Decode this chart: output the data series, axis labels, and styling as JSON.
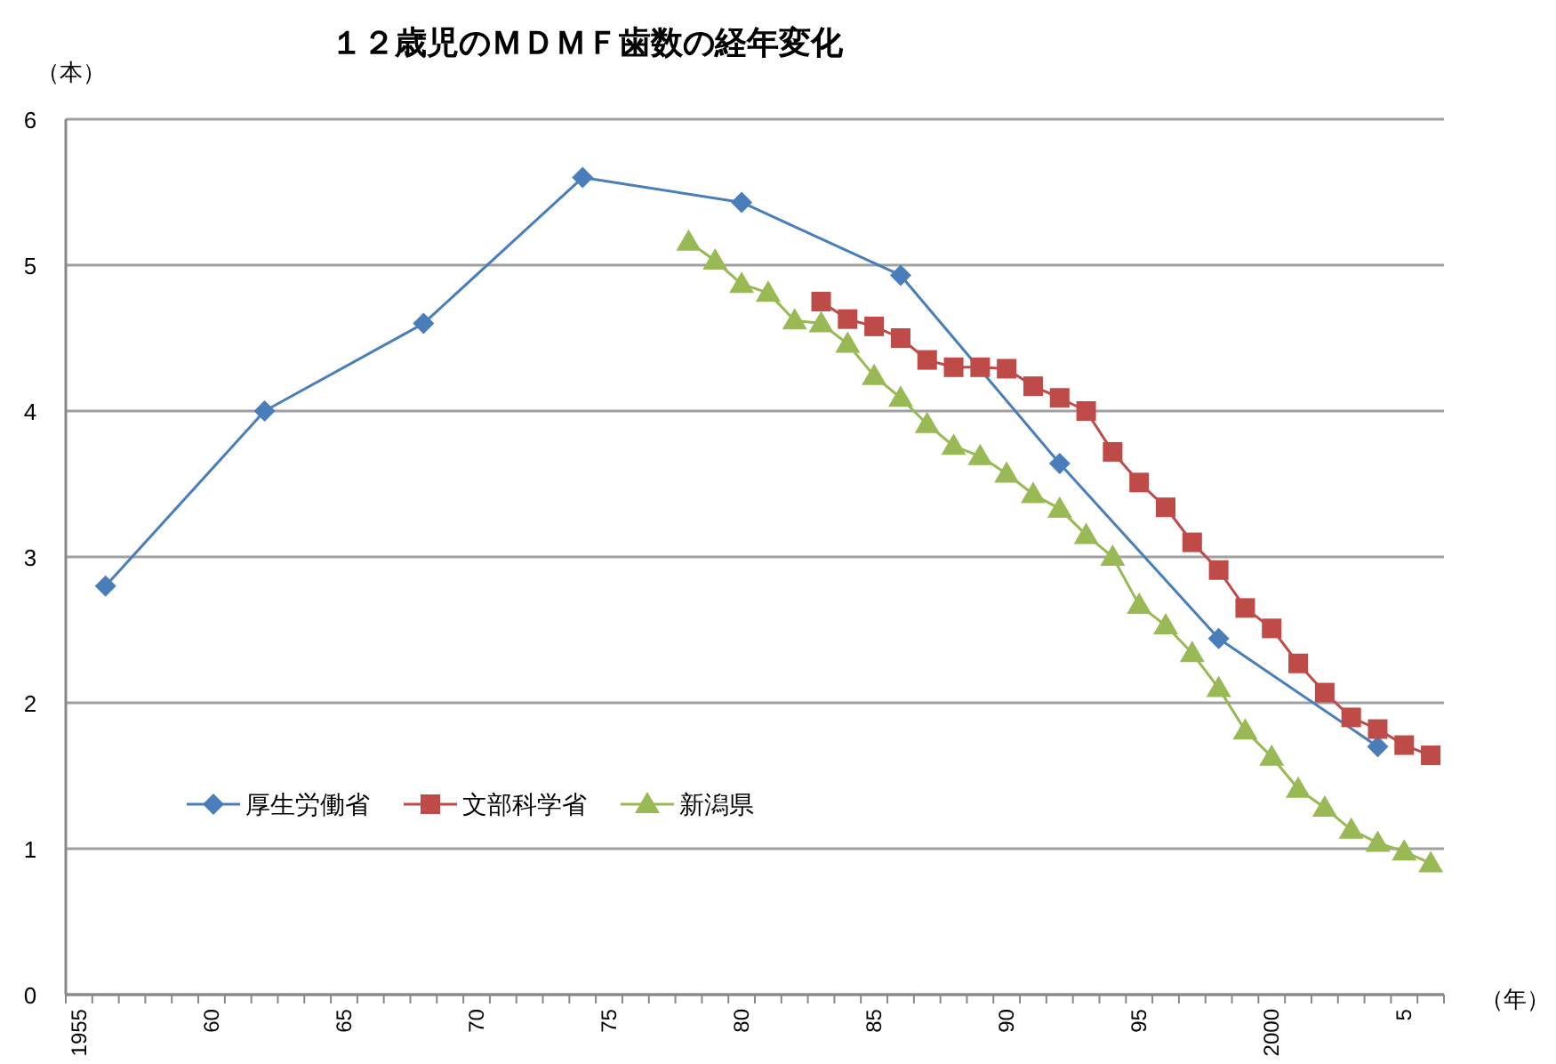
{
  "chart_data": {
    "type": "line",
    "title": "１２歳児のＭＤＭＦ歯数の経年変化",
    "ylabel": "（本）",
    "xlabel": "（年）",
    "categories": [
      "1955",
      null,
      null,
      null,
      null,
      "60",
      null,
      null,
      null,
      null,
      "65",
      null,
      null,
      null,
      null,
      "70",
      null,
      null,
      null,
      null,
      "75",
      null,
      null,
      null,
      null,
      "80",
      null,
      null,
      null,
      null,
      "85",
      null,
      null,
      null,
      null,
      "90",
      null,
      null,
      null,
      null,
      "95",
      null,
      null,
      null,
      null,
      "2000",
      null,
      null,
      null,
      null,
      "5",
      null
    ],
    "series": [
      {
        "name": "厚生労働省",
        "color": "#4a7ebb",
        "marker": "diamond",
        "values": [
          null,
          2.8,
          null,
          null,
          null,
          null,
          null,
          4.0,
          null,
          null,
          null,
          null,
          null,
          4.6,
          null,
          null,
          null,
          null,
          null,
          5.6,
          null,
          null,
          null,
          null,
          null,
          5.43,
          null,
          null,
          null,
          null,
          null,
          4.93,
          null,
          null,
          null,
          null,
          null,
          3.64,
          null,
          null,
          null,
          null,
          null,
          2.44,
          null,
          null,
          null,
          null,
          null,
          1.7,
          null,
          null
        ]
      },
      {
        "name": "文部科学省",
        "color": "#be4b48",
        "marker": "square",
        "values": [
          null,
          null,
          null,
          null,
          null,
          null,
          null,
          null,
          null,
          null,
          null,
          null,
          null,
          null,
          null,
          null,
          null,
          null,
          null,
          null,
          null,
          null,
          null,
          null,
          null,
          null,
          null,
          null,
          4.75,
          4.63,
          4.58,
          4.5,
          4.35,
          4.3,
          4.3,
          4.29,
          4.17,
          4.09,
          4.0,
          3.72,
          3.51,
          3.34,
          3.1,
          2.91,
          2.65,
          2.51,
          2.27,
          2.07,
          1.9,
          1.82,
          1.71,
          1.64
        ]
      },
      {
        "name": "新潟県",
        "color": "#98b954",
        "marker": "triangle",
        "values": [
          null,
          null,
          null,
          null,
          null,
          null,
          null,
          null,
          null,
          null,
          null,
          null,
          null,
          null,
          null,
          null,
          null,
          null,
          null,
          null,
          null,
          null,
          null,
          5.16,
          5.03,
          4.87,
          4.81,
          4.62,
          4.6,
          4.46,
          4.24,
          4.09,
          3.91,
          3.76,
          3.69,
          3.57,
          3.43,
          3.33,
          3.15,
          3.0,
          2.67,
          2.53,
          2.34,
          2.1,
          1.81,
          1.63,
          1.41,
          1.28,
          1.13,
          1.04,
          0.98,
          0.9
        ]
      }
    ],
    "ylim": [
      0,
      6
    ],
    "yticks": [
      0,
      1,
      2,
      3,
      4,
      5,
      6
    ],
    "grid": "y",
    "legend": "left"
  }
}
